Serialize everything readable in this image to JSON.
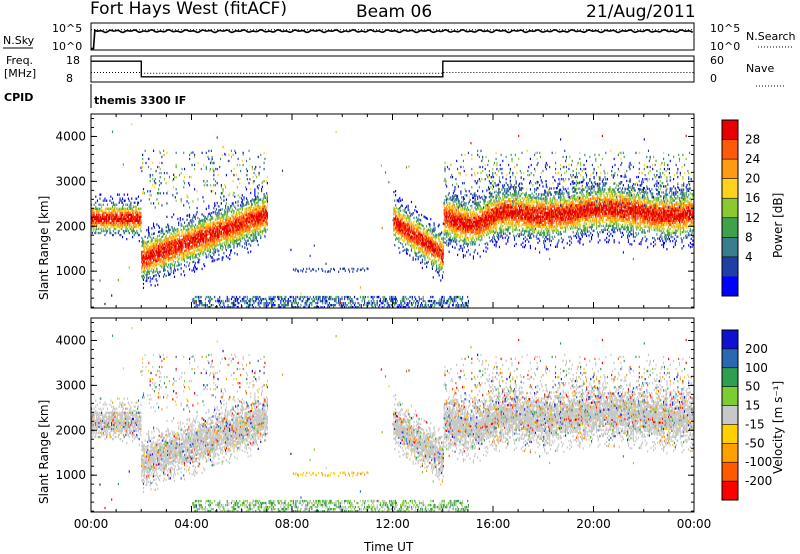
{
  "header": {
    "station": "Fort Hays West (fitACF)",
    "beam": "Beam 06",
    "date": "21/Aug/2011"
  },
  "top_panels": {
    "nsky_label": "N.Sky",
    "nsearch_label": "N.Search",
    "noise_left_ticks": [
      "10^5",
      "10^0"
    ],
    "noise_right_ticks": [
      "10^5",
      "10^0"
    ],
    "freq_label_1": "Freq.",
    "freq_label_2": "[MHz]",
    "freq_ticks": [
      "18",
      "8"
    ],
    "nave_label": "Nave",
    "nave_ticks": [
      "60",
      "0"
    ],
    "cpid_label": "CPID",
    "cpid_text": "themis 3300 IF"
  },
  "colors": {
    "power_scale": [
      "#0000ff",
      "#1f3fa6",
      "#3a7d8c",
      "#3fa24a",
      "#8cc832",
      "#ffd21e",
      "#ff9a14",
      "#ff5a0a",
      "#e60000"
    ],
    "velocity_scale": [
      "#ff0000",
      "#ff5a00",
      "#ff9f00",
      "#ffd000",
      "#c8c8c8",
      "#7ccd31",
      "#2e9e4f",
      "#2c67b1",
      "#1010d0"
    ],
    "grey_scatter": "#c8c8c8"
  },
  "chart_data": [
    {
      "type": "line",
      "panel": "noise",
      "x_range_hours": [
        0,
        24
      ],
      "series": [
        {
          "name": "N.Sky",
          "style": "solid",
          "x": [
            0,
            0.1,
            0.15,
            2,
            4,
            6,
            8,
            10,
            12,
            14,
            16,
            18,
            20,
            22,
            24
          ],
          "y_level": [
            0.05,
            0.05,
            0.7,
            0.7,
            0.7,
            0.72,
            0.68,
            0.7,
            0.7,
            0.7,
            0.72,
            0.7,
            0.7,
            0.74,
            0.72
          ]
        },
        {
          "name": "N.Search",
          "style": "dotted",
          "x": [
            0,
            24
          ],
          "y_level": [
            0.75,
            0.75
          ]
        }
      ]
    },
    {
      "type": "line",
      "panel": "freq_nave",
      "x_range_hours": [
        0,
        24
      ],
      "freq_ylim": [
        8,
        18
      ],
      "series": [
        {
          "name": "Freq",
          "style": "solid",
          "x": [
            0,
            2,
            2,
            14,
            14,
            24
          ],
          "y": [
            16,
            16,
            10,
            10,
            16,
            16
          ]
        },
        {
          "name": "Nave",
          "style": "dotted",
          "x": [
            0,
            2,
            2,
            14,
            14,
            24
          ],
          "y": [
            22,
            22,
            20,
            20,
            22,
            22
          ]
        }
      ]
    },
    {
      "type": "heatmap",
      "panel": "power",
      "xlabel": "",
      "ylabel": "Slant Range [km]",
      "xlim_hours": [
        0,
        24
      ],
      "ylim_km": [
        180,
        4500
      ],
      "yticks": [
        1000,
        2000,
        3000,
        4000
      ],
      "colorbar_label": "Power [dB]",
      "colorbar_ticks": [
        "28",
        "24",
        "20",
        "16",
        "12",
        "8",
        "4"
      ],
      "colorbar_range": [
        0,
        30
      ]
    },
    {
      "type": "heatmap",
      "panel": "velocity",
      "xlabel": "Time UT",
      "ylabel": "Slant Range [km]",
      "xlim_hours": [
        0,
        24
      ],
      "ylim_km": [
        180,
        4500
      ],
      "yticks": [
        1000,
        2000,
        3000,
        4000
      ],
      "xticks": [
        "00:00",
        "04:00",
        "08:00",
        "12:00",
        "16:00",
        "20:00",
        "00:00"
      ],
      "colorbar_label": "Velocity [m s⁻¹]",
      "colorbar_ticks": [
        "200",
        "100",
        "50",
        "15",
        "-15",
        "-50",
        "-100",
        "-200"
      ],
      "colorbar_range": [
        -250,
        250
      ]
    }
  ]
}
